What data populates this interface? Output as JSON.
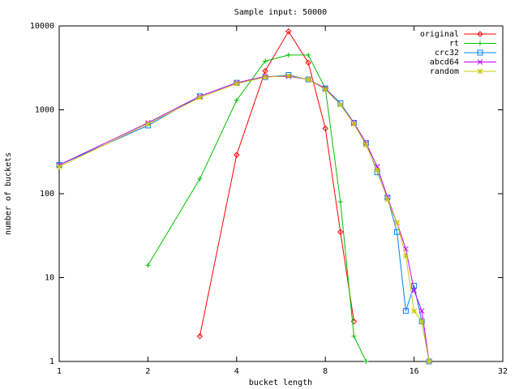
{
  "chart_data": {
    "type": "line",
    "title": "Sample input: 50000",
    "xlabel": "bucket length",
    "ylabel": "number of buckets",
    "xlog": true,
    "ylog": true,
    "xlim": [
      1,
      32
    ],
    "xticks": [
      1,
      2,
      4,
      8,
      16,
      32
    ],
    "ylim": [
      1,
      10000
    ],
    "yticks": [
      1,
      10,
      100,
      1000,
      10000
    ],
    "legend": "top-right",
    "series": [
      {
        "name": "original",
        "color": "#ff0000",
        "marker": "diamond",
        "x": [
          3,
          4,
          5,
          6,
          7,
          8,
          9,
          10
        ],
        "values": [
          2,
          290,
          2900,
          8600,
          3650,
          600,
          35,
          3
        ]
      },
      {
        "name": "rt",
        "color": "#00c000",
        "marker": "plus",
        "x": [
          2,
          3,
          4,
          5,
          6,
          7,
          8,
          9,
          10,
          11
        ],
        "values": [
          14,
          150,
          1300,
          3800,
          4500,
          4500,
          1800,
          80,
          2,
          1
        ]
      },
      {
        "name": "crc32",
        "color": "#0080ff",
        "marker": "square",
        "x": [
          1,
          2,
          3,
          4,
          5,
          6,
          7,
          8,
          9,
          10,
          11,
          12,
          13,
          14,
          15,
          16,
          17,
          18
        ],
        "values": [
          220,
          650,
          1450,
          2100,
          2450,
          2600,
          2300,
          1800,
          1200,
          700,
          400,
          180,
          90,
          35,
          4,
          8,
          3,
          1
        ]
      },
      {
        "name": "abcd64",
        "color": "#c000ff",
        "marker": "cross",
        "x": [
          1,
          2,
          3,
          4,
          5,
          6,
          7,
          8,
          9,
          10,
          11,
          12,
          13,
          14,
          15,
          16,
          17,
          18
        ],
        "values": [
          220,
          700,
          1450,
          2100,
          2500,
          2500,
          2300,
          1800,
          1150,
          700,
          400,
          210,
          90,
          45,
          22,
          7,
          4,
          1
        ]
      },
      {
        "name": "random",
        "color": "#c8c800",
        "marker": "star",
        "x": [
          1,
          2,
          3,
          4,
          5,
          6,
          7,
          8,
          9,
          10,
          11,
          12,
          13,
          14,
          15,
          16,
          17,
          18
        ],
        "values": [
          210,
          680,
          1400,
          2050,
          2450,
          2550,
          2300,
          1750,
          1150,
          680,
          380,
          190,
          85,
          45,
          18,
          4,
          3,
          1
        ]
      }
    ]
  }
}
